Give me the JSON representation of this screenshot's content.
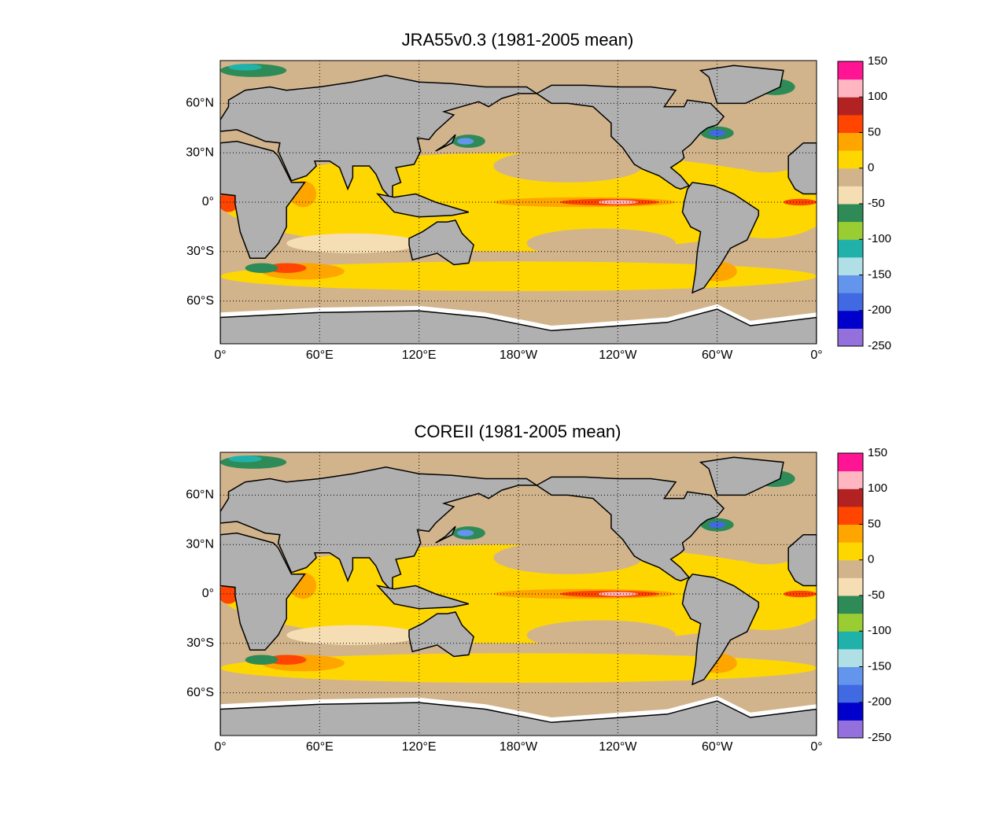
{
  "panels": [
    {
      "title": "JRA55v0.3 (1981-2005 mean)",
      "lon_lim": [
        0,
        360
      ],
      "lat_lim": [
        -86,
        86
      ],
      "lon_ticks": [
        {
          "value": 0,
          "label": "0°"
        },
        {
          "value": 60,
          "label": "60°E"
        },
        {
          "value": 120,
          "label": "120°E"
        },
        {
          "value": 180,
          "label": "180°W"
        },
        {
          "value": 240,
          "label": "120°W"
        },
        {
          "value": 300,
          "label": "60°W"
        },
        {
          "value": 360,
          "label": "0°"
        }
      ],
      "lat_ticks": [
        {
          "value": 60,
          "label": "60°N"
        },
        {
          "value": 30,
          "label": "30°N"
        },
        {
          "value": 0,
          "label": "0°"
        },
        {
          "value": -30,
          "label": "30°S"
        },
        {
          "value": -60,
          "label": "60°S"
        }
      ],
      "colorbar": {
        "clim": [
          -250,
          150
        ],
        "ticks": [
          150,
          100,
          50,
          0,
          -50,
          -100,
          -150,
          -200,
          -250
        ],
        "colors": [
          "#9370db",
          "#0000cd",
          "#4169e1",
          "#6495ed",
          "#b0e0e6",
          "#20b2aa",
          "#9acd32",
          "#2e8b57",
          "#f5deb3",
          "#d2b48c",
          "#ffd700",
          "#ffa500",
          "#ff4500",
          "#b22222",
          "#ffb6c1",
          "#ff1493"
        ]
      }
    },
    {
      "title": "COREII (1981-2005 mean)",
      "lon_lim": [
        0,
        360
      ],
      "lat_lim": [
        -86,
        86
      ],
      "lon_ticks": [
        {
          "value": 0,
          "label": "0°"
        },
        {
          "value": 60,
          "label": "60°E"
        },
        {
          "value": 120,
          "label": "120°E"
        },
        {
          "value": 180,
          "label": "180°W"
        },
        {
          "value": 240,
          "label": "120°W"
        },
        {
          "value": 300,
          "label": "60°W"
        },
        {
          "value": 360,
          "label": "0°"
        }
      ],
      "lat_ticks": [
        {
          "value": 60,
          "label": "60°N"
        },
        {
          "value": 30,
          "label": "30°N"
        },
        {
          "value": 0,
          "label": "0°"
        },
        {
          "value": -30,
          "label": "30°S"
        },
        {
          "value": -60,
          "label": "60°S"
        }
      ],
      "colorbar": {
        "clim": [
          -250,
          150
        ],
        "ticks": [
          150,
          100,
          50,
          0,
          -50,
          -100,
          -150,
          -200,
          -250
        ],
        "colors": [
          "#9370db",
          "#0000cd",
          "#4169e1",
          "#6495ed",
          "#b0e0e6",
          "#20b2aa",
          "#9acd32",
          "#2e8b57",
          "#f5deb3",
          "#d2b48c",
          "#ffd700",
          "#ffa500",
          "#ff4500",
          "#b22222",
          "#ffb6c1",
          "#ff1493"
        ]
      }
    }
  ]
}
